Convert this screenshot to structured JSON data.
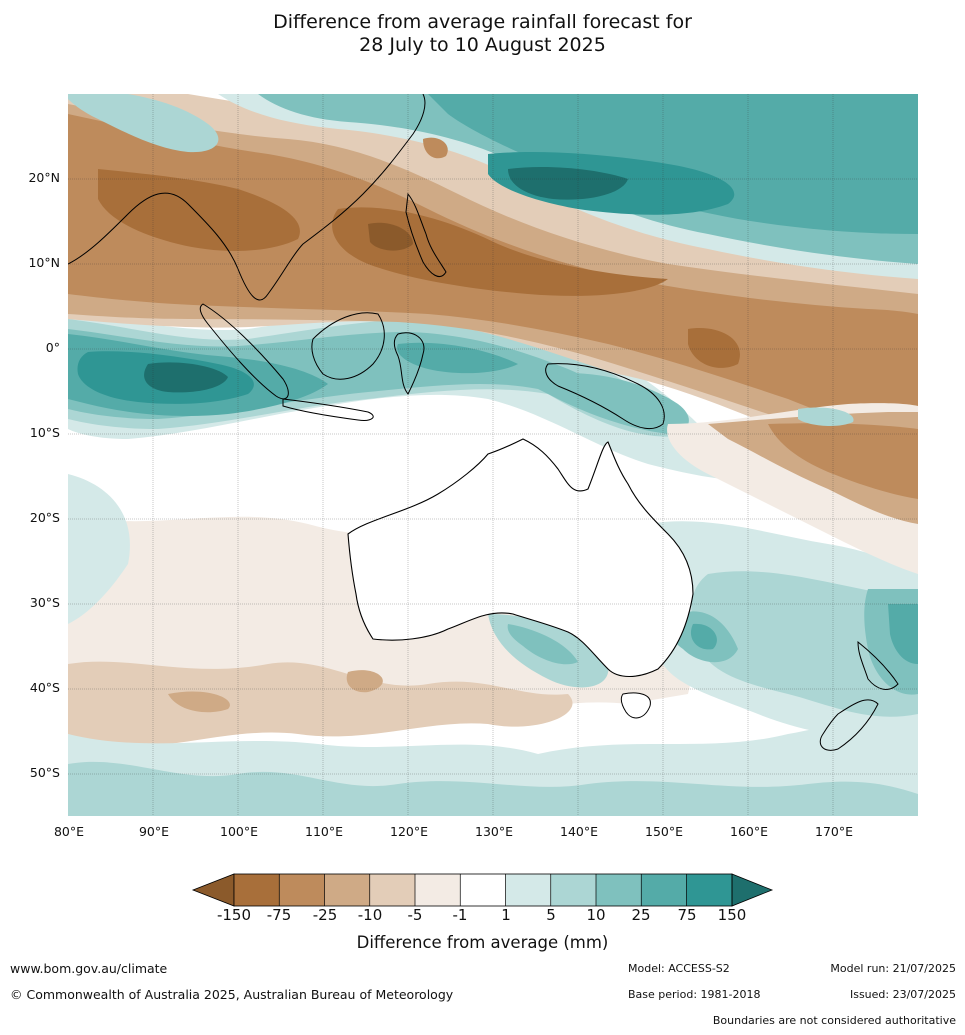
{
  "title": {
    "line1": "Difference from average rainfall forecast for",
    "line2": "28 July to 10 August 2025"
  },
  "map": {
    "lat_labels": [
      "20°N",
      "10°N",
      "0°",
      "10°S",
      "20°S",
      "30°S",
      "40°S",
      "50°S"
    ],
    "lon_labels": [
      "80°E",
      "90°E",
      "100°E",
      "110°E",
      "120°E",
      "130°E",
      "140°E",
      "150°E",
      "160°E",
      "170°E"
    ]
  },
  "colorbar": {
    "title": "Difference from average (mm)",
    "ticks": [
      "-150",
      "-75",
      "-25",
      "-10",
      "-5",
      "-1",
      "1",
      "5",
      "10",
      "25",
      "75",
      "150"
    ],
    "colors": {
      "dry_extreme": "#8b5a2b",
      "dry_150": "#a86f3a",
      "dry_75": "#be8b5c",
      "dry_25": "#cfaa86",
      "dry_10": "#e3cdb8",
      "dry_5": "#f3ebe4",
      "neutral": "#ffffff",
      "wet_5": "#d4e9e8",
      "wet_10": "#acd6d4",
      "wet_25": "#7fc1be",
      "wet_75": "#54aba8",
      "wet_150": "#2f9694",
      "wet_extreme": "#1e6f6d"
    }
  },
  "footer": {
    "website": "www.bom.gov.au/climate",
    "copyright": "© Commonwealth of Australia 2025, Australian Bureau of Meteorology",
    "model": "Model: ACCESS-S2",
    "base_period": "Base period: 1981-2018",
    "model_run": "Model run: 21/07/2025",
    "issued": "Issued: 23/07/2025",
    "disclaimer": "Boundaries are not considered authoritative"
  }
}
